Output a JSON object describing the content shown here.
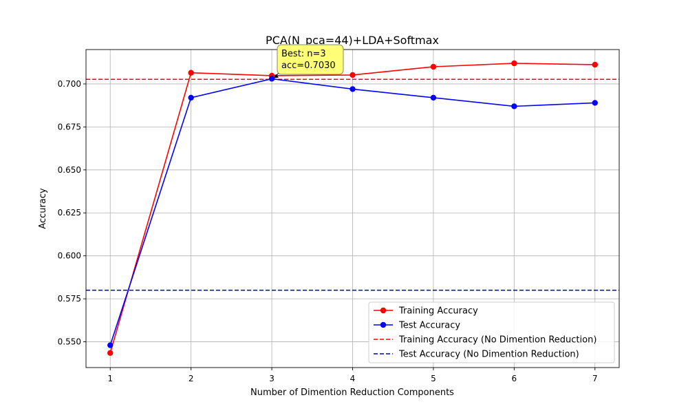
{
  "chart_data": {
    "type": "line",
    "title": "PCA(N_pca=44)+LDA+Softmax",
    "xlabel": "Number of Dimention Reduction Components",
    "ylabel": "Accuracy",
    "x": [
      1,
      2,
      3,
      4,
      5,
      6,
      7
    ],
    "xlim": [
      0.7,
      7.3
    ],
    "ylim": [
      0.535,
      0.72
    ],
    "x_ticks": [
      "1",
      "2",
      "3",
      "4",
      "5",
      "6",
      "7"
    ],
    "y_ticks": [
      0.55,
      0.575,
      0.6,
      0.625,
      0.65,
      0.675,
      0.7
    ],
    "y_tick_labels": [
      "0.550",
      "0.575",
      "0.600",
      "0.625",
      "0.650",
      "0.675",
      "0.700"
    ],
    "grid": true,
    "legend_position": "lower-right",
    "series": [
      {
        "name": "Training Accuracy",
        "color": "#ff0000",
        "style": "solid",
        "marker": "circle",
        "values": [
          0.5435,
          0.7065,
          0.7048,
          0.7052,
          0.71,
          0.712,
          0.7112
        ]
      },
      {
        "name": "Test Accuracy",
        "color": "#0000ff",
        "style": "solid",
        "marker": "circle",
        "values": [
          0.548,
          0.692,
          0.703,
          0.697,
          0.692,
          0.687,
          0.689
        ]
      }
    ],
    "reference_lines": [
      {
        "name": "Training Accuracy (No Dimention Reduction)",
        "color": "#ff0000",
        "style": "dashed",
        "value": 0.7027
      },
      {
        "name": "Test Accuracy (No Dimention Reduction)",
        "color": "#0000aa",
        "style": "dashed",
        "value": 0.58
      }
    ],
    "annotation": {
      "lines": [
        "Best: n=3",
        "acc=0.7030"
      ],
      "target_x": 3,
      "target_y": 0.703,
      "box_color": "#ffff77"
    }
  }
}
